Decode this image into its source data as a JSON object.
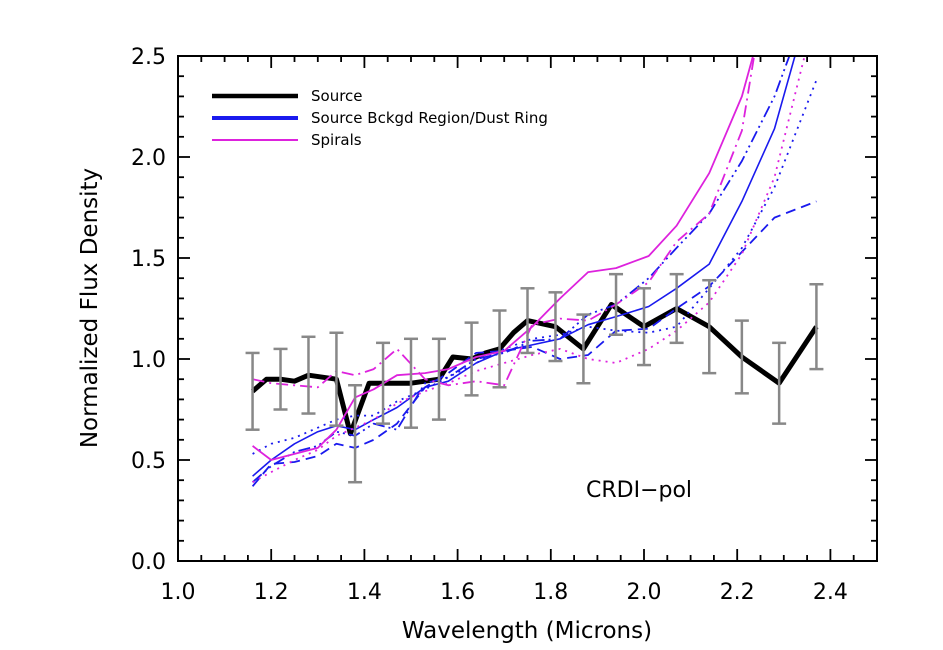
{
  "chart_data": {
    "type": "line",
    "xlabel": "Wavelength (Microns)",
    "ylabel": "Normalized Flux Density",
    "xlim": [
      1.0,
      2.5
    ],
    "ylim": [
      0.0,
      2.5
    ],
    "xticks": [
      "1.0",
      "1.2",
      "1.4",
      "1.6",
      "1.8",
      "2.0",
      "2.2",
      "2.4"
    ],
    "yticks": [
      "0.0",
      "0.5",
      "1.0",
      "1.5",
      "2.0",
      "2.5"
    ],
    "annotation": "CRDI−pol",
    "legend": {
      "position": "top-left",
      "entries": [
        {
          "label": "Source",
          "color": "#000000"
        },
        {
          "label": "Source Bckgd Region/Dust Ring",
          "color": "#1a1aee"
        },
        {
          "label": "Spirals",
          "color": "#dd22dd"
        }
      ]
    },
    "colors": {
      "source": "#000000",
      "background": "#1a1aee",
      "spirals": "#dd22dd",
      "errorbar": "#888888"
    },
    "series": [
      {
        "color": "#000000",
        "dash": "solid",
        "width": 5,
        "x": [
          1.16,
          1.19,
          1.22,
          1.25,
          1.28,
          1.31,
          1.34,
          1.37,
          1.41,
          1.44,
          1.47,
          1.5,
          1.53,
          1.56,
          1.59,
          1.63,
          1.66,
          1.69,
          1.72,
          1.75,
          1.81,
          1.87,
          1.93,
          2.0,
          2.07,
          2.14,
          2.21,
          2.29,
          2.37
        ],
        "y": [
          0.84,
          0.9,
          0.9,
          0.89,
          0.92,
          0.91,
          0.9,
          0.63,
          0.88,
          0.88,
          0.88,
          0.88,
          0.89,
          0.9,
          1.01,
          1.0,
          1.03,
          1.05,
          1.13,
          1.19,
          1.16,
          1.05,
          1.27,
          1.16,
          1.25,
          1.16,
          1.01,
          0.88,
          1.16
        ]
      },
      {
        "color": "#1a1aee",
        "dash": "solid",
        "width": 1.6,
        "x": [
          1.16,
          1.2,
          1.25,
          1.3,
          1.34,
          1.38,
          1.42,
          1.47,
          1.53,
          1.58,
          1.64,
          1.7,
          1.76,
          1.82,
          1.88,
          1.94,
          2.01,
          2.07,
          2.14,
          2.21,
          2.28,
          2.33
        ],
        "y": [
          0.42,
          0.5,
          0.58,
          0.64,
          0.67,
          0.65,
          0.7,
          0.76,
          0.86,
          0.89,
          0.98,
          1.04,
          1.07,
          1.1,
          1.17,
          1.21,
          1.26,
          1.35,
          1.47,
          1.78,
          2.14,
          2.55
        ]
      },
      {
        "color": "#1a1aee",
        "dash": "dash",
        "width": 1.8,
        "x": [
          1.16,
          1.2,
          1.25,
          1.3,
          1.34,
          1.38,
          1.42,
          1.47,
          1.53,
          1.58,
          1.64,
          1.7,
          1.76,
          1.82,
          1.88,
          1.94,
          2.01,
          2.07,
          2.14,
          2.21,
          2.28,
          2.37
        ],
        "y": [
          0.37,
          0.48,
          0.49,
          0.52,
          0.58,
          0.56,
          0.6,
          0.68,
          0.86,
          0.93,
          1.03,
          1.04,
          1.06,
          1.0,
          1.02,
          1.14,
          1.15,
          1.25,
          1.36,
          1.53,
          1.7,
          1.78
        ]
      },
      {
        "color": "#1a1aee",
        "dash": "dot",
        "width": 1.8,
        "x": [
          1.16,
          1.2,
          1.25,
          1.3,
          1.34,
          1.38,
          1.42,
          1.47,
          1.53,
          1.58,
          1.64,
          1.7,
          1.76,
          1.82,
          1.88,
          1.94,
          2.01,
          2.07,
          2.14,
          2.21,
          2.28,
          2.37
        ],
        "y": [
          0.53,
          0.58,
          0.61,
          0.66,
          0.7,
          0.72,
          0.72,
          0.79,
          0.85,
          0.91,
          0.98,
          1.05,
          1.1,
          1.12,
          1.16,
          1.14,
          1.13,
          1.16,
          1.35,
          1.55,
          1.85,
          2.38
        ]
      },
      {
        "color": "#1a1aee",
        "dash": "dashdotdot",
        "width": 1.8,
        "x": [
          1.16,
          1.2,
          1.25,
          1.3,
          1.34,
          1.38,
          1.42,
          1.47,
          1.53,
          1.58,
          1.64,
          1.7,
          1.76,
          1.82,
          1.88,
          1.94,
          2.01,
          2.07,
          2.14,
          2.21,
          2.28,
          2.32
        ],
        "y": [
          0.39,
          0.47,
          0.54,
          0.57,
          0.64,
          0.62,
          0.68,
          0.65,
          0.88,
          0.91,
          1.0,
          1.03,
          1.09,
          1.1,
          1.22,
          1.27,
          1.4,
          1.55,
          1.72,
          1.98,
          2.3,
          2.55
        ]
      },
      {
        "color": "#dd22dd",
        "dash": "solid",
        "width": 1.8,
        "x": [
          1.16,
          1.2,
          1.25,
          1.3,
          1.34,
          1.38,
          1.42,
          1.47,
          1.53,
          1.58,
          1.64,
          1.7,
          1.76,
          1.82,
          1.88,
          1.94,
          2.01,
          2.07,
          2.14,
          2.21,
          2.24
        ],
        "y": [
          0.57,
          0.5,
          0.53,
          0.56,
          0.65,
          0.81,
          0.85,
          0.92,
          0.93,
          0.95,
          1.01,
          1.04,
          1.16,
          1.3,
          1.43,
          1.45,
          1.51,
          1.66,
          1.92,
          2.3,
          2.55
        ]
      },
      {
        "color": "#dd22dd",
        "dash": "dot",
        "width": 1.8,
        "x": [
          1.16,
          1.2,
          1.25,
          1.3,
          1.34,
          1.38,
          1.42,
          1.47,
          1.53,
          1.58,
          1.64,
          1.7,
          1.76,
          1.82,
          1.88,
          1.94,
          2.01,
          2.07,
          2.14,
          2.21,
          2.28,
          2.35
        ],
        "y": [
          0.39,
          0.44,
          0.5,
          0.55,
          0.62,
          0.66,
          0.7,
          0.78,
          0.84,
          0.88,
          0.94,
          0.98,
          1.02,
          1.05,
          1.0,
          0.98,
          1.05,
          1.14,
          1.28,
          1.52,
          1.9,
          2.55
        ]
      },
      {
        "color": "#dd22dd",
        "dash": "dashdot",
        "width": 1.8,
        "x": [
          1.16,
          1.2,
          1.25,
          1.3,
          1.34,
          1.38,
          1.42,
          1.47,
          1.53,
          1.58,
          1.64,
          1.7,
          1.76,
          1.82,
          1.88,
          1.94,
          2.01,
          2.07,
          2.14,
          2.21,
          2.24
        ],
        "y": [
          0.9,
          0.88,
          0.87,
          0.86,
          0.94,
          0.92,
          0.95,
          1.05,
          0.9,
          0.87,
          0.89,
          0.87,
          1.17,
          1.2,
          1.19,
          1.27,
          1.38,
          1.58,
          1.72,
          2.13,
          2.55
        ]
      }
    ],
    "errorbars": {
      "color": "#888888",
      "x": [
        1.16,
        1.22,
        1.28,
        1.34,
        1.38,
        1.44,
        1.5,
        1.56,
        1.63,
        1.69,
        1.75,
        1.81,
        1.87,
        1.94,
        2.0,
        2.07,
        2.14,
        2.21,
        2.29,
        2.37
      ],
      "y": [
        0.84,
        0.9,
        0.92,
        0.9,
        0.63,
        0.88,
        0.88,
        0.9,
        1.0,
        1.05,
        1.19,
        1.16,
        1.05,
        1.27,
        1.16,
        1.25,
        1.16,
        1.01,
        0.88,
        1.16
      ],
      "err": [
        0.19,
        0.15,
        0.19,
        0.23,
        0.24,
        0.2,
        0.22,
        0.2,
        0.18,
        0.19,
        0.16,
        0.17,
        0.17,
        0.15,
        0.19,
        0.17,
        0.23,
        0.18,
        0.2,
        0.21
      ]
    }
  }
}
